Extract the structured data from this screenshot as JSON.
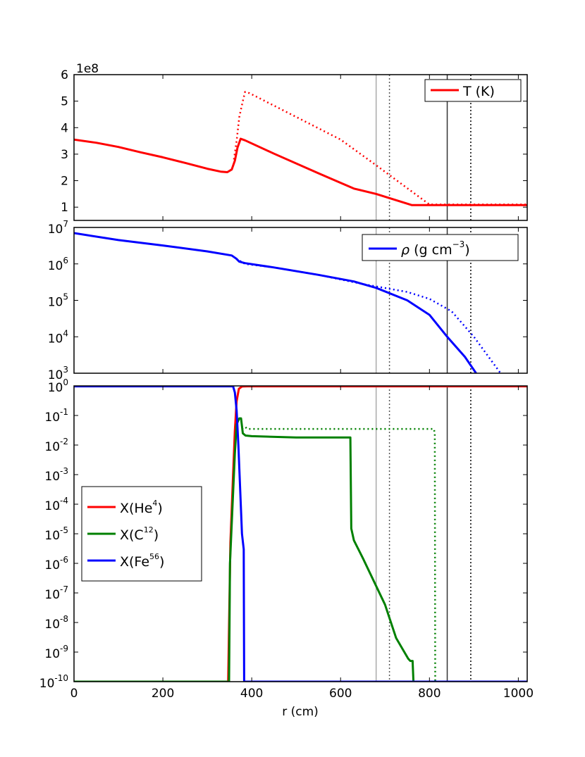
{
  "chart_data": [
    {
      "type": "line",
      "panel": "temperature",
      "ylim": [
        0.5,
        6
      ],
      "yscale": "linear",
      "offset_text": "1e8",
      "yticks": [
        "1",
        "2",
        "3",
        "4",
        "5",
        "6"
      ],
      "ytick_values": [
        1,
        2,
        3,
        4,
        5,
        6
      ],
      "legend": {
        "position": "top-right",
        "entries": [
          "T (K)"
        ]
      },
      "series": [
        {
          "name": "T (K)",
          "color": "#ff0000",
          "style": "solid",
          "x": [
            0,
            50,
            100,
            150,
            200,
            250,
            300,
            330,
            345,
            355,
            362,
            368,
            375,
            385,
            450,
            550,
            630,
            680,
            760,
            1020
          ],
          "y": [
            3.55,
            3.43,
            3.27,
            3.07,
            2.88,
            2.67,
            2.45,
            2.34,
            2.32,
            2.42,
            2.75,
            3.25,
            3.58,
            3.52,
            3.02,
            2.28,
            1.7,
            1.5,
            1.08,
            1.08
          ]
        },
        {
          "name": "T (K) pre",
          "color": "#ff0000",
          "style": "dotted",
          "x": [
            360,
            366,
            372,
            380,
            385,
            395,
            600,
            680,
            800,
            1020
          ],
          "y": [
            2.8,
            3.5,
            4.4,
            5.0,
            5.35,
            5.3,
            3.55,
            2.58,
            1.1,
            1.1
          ]
        }
      ]
    },
    {
      "type": "line",
      "panel": "density",
      "yscale": "log",
      "ylim": [
        1000,
        10000000
      ],
      "yticks": [
        "7",
        "6",
        "5",
        "4",
        "3"
      ],
      "ytick_values": [
        10000000,
        1000000,
        100000,
        10000,
        1000
      ],
      "legend": {
        "position": "top-right",
        "entries": [
          "(g cm",
          ")"
        ],
        "symbol": "ρ",
        "superscript": "−3"
      },
      "series": [
        {
          "name": "ρ",
          "color": "#0000ff",
          "style": "solid",
          "x": [
            0,
            100,
            200,
            300,
            355,
            365,
            372,
            385,
            450,
            550,
            630,
            680,
            750,
            800,
            840,
            880,
            905
          ],
          "y": [
            7000000,
            4500000,
            3200000,
            2200000,
            1700000,
            1400000,
            1150000,
            1050000,
            800000,
            500000,
            330000,
            220000,
            100000,
            40000,
            10000,
            2800,
            1000
          ]
        },
        {
          "name": "ρ pre",
          "color": "#0000ff",
          "style": "dotted",
          "x": [
            365,
            385,
            450,
            550,
            650,
            750,
            800,
            850,
            900,
            960
          ],
          "y": [
            1400000,
            1000000,
            800000,
            500000,
            280000,
            170000,
            110000,
            50000,
            10000,
            1000
          ]
        }
      ]
    },
    {
      "type": "line",
      "panel": "abundances",
      "yscale": "log",
      "xlabel": "r (cm)",
      "xlim": [
        0,
        1020
      ],
      "xticks": [
        "0",
        "200",
        "400",
        "600",
        "800",
        "1000"
      ],
      "xtick_values": [
        0,
        200,
        400,
        600,
        800,
        1000
      ],
      "ylim": [
        1e-10,
        1
      ],
      "yticks": [
        "0",
        "-1",
        "-2",
        "-3",
        "-4",
        "-5",
        "-6",
        "-7",
        "-8",
        "-9",
        "-10"
      ],
      "ytick_values": [
        1,
        0.1,
        0.01,
        0.001,
        0.0001,
        1e-05,
        1e-06,
        1e-07,
        1e-08,
        1e-09,
        1e-10
      ],
      "legend": {
        "position": "lower-left",
        "entries": [
          {
            "base": "X(He",
            "sup": "4",
            "close": ")"
          },
          {
            "base": "X(C",
            "sup": "12",
            "close": ")"
          },
          {
            "base": "X(Fe",
            "sup": "56",
            "close": ")"
          }
        ]
      },
      "vlines": [
        {
          "x": 680,
          "color": "#aaaaaa",
          "style": "solid"
        },
        {
          "x": 710,
          "color": "#555555",
          "style": "dotted"
        },
        {
          "x": 840,
          "color": "#333333",
          "style": "solid"
        },
        {
          "x": 893,
          "color": "#000000",
          "style": "dotted"
        }
      ],
      "series": [
        {
          "name": "X(He4)",
          "color": "#ff0000",
          "style": "solid",
          "x": [
            0,
            347,
            352,
            358,
            362,
            366,
            371,
            378,
            390,
            1020
          ],
          "y": [
            1e-10,
            1e-10,
            5e-06,
            0.001,
            0.03,
            0.3,
            0.8,
            0.95,
            0.97,
            0.97
          ]
        },
        {
          "name": "X(C12)",
          "color": "#008000",
          "style": "solid",
          "x": [
            0,
            349,
            351,
            357,
            362,
            366,
            372,
            376,
            380,
            386,
            400,
            500,
            622,
            624,
            630,
            650,
            700,
            725,
            752,
            757,
            762,
            764
          ],
          "y": [
            1e-10,
            1e-10,
            1e-06,
            0.0001,
            0.005,
            0.05,
            0.08,
            0.08,
            0.025,
            0.021,
            0.02,
            0.018,
            0.018,
            1.5e-05,
            6e-06,
            1.5e-06,
            4e-08,
            3e-09,
            6e-10,
            5e-10,
            5e-10,
            1e-10
          ]
        },
        {
          "name": "X(C12) pre",
          "color": "#008000",
          "style": "dotted",
          "x": [
            378,
            382,
            386,
            390,
            810,
            812,
            813
          ],
          "y": [
            0.035,
            0.04,
            0.04,
            0.035,
            0.035,
            0.025,
            1e-10
          ]
        },
        {
          "name": "X(Fe56)",
          "color": "#0000ff",
          "style": "solid",
          "x": [
            0,
            358,
            362,
            366,
            370,
            374,
            378,
            382,
            383,
            1020
          ],
          "y": [
            0.97,
            0.97,
            0.6,
            0.15,
            0.01,
            0.0003,
            1e-05,
            3e-06,
            1e-10,
            1e-10
          ]
        }
      ]
    }
  ]
}
